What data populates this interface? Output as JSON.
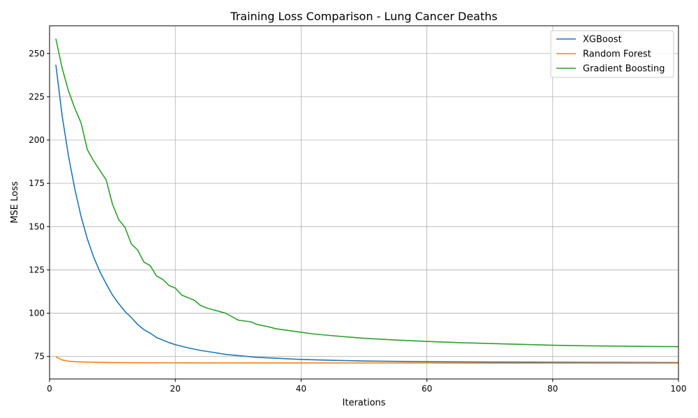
{
  "chart_data": {
    "type": "line",
    "title": "Training Loss Comparison - Lung Cancer Deaths",
    "xlabel": "Iterations",
    "ylabel": "MSE Loss",
    "xlim": [
      0,
      100
    ],
    "ylim": [
      62,
      266
    ],
    "xticks": [
      0,
      20,
      40,
      60,
      80,
      100
    ],
    "yticks": [
      75,
      100,
      125,
      150,
      175,
      200,
      225,
      250
    ],
    "grid": true,
    "legend_position": "upper right",
    "series": [
      {
        "name": "XGBoost",
        "color": "#1f77b4",
        "x": [
          1,
          2,
          3,
          4,
          5,
          6,
          7,
          8,
          9,
          10,
          11,
          12,
          13,
          14,
          15,
          16,
          17,
          18,
          19,
          20,
          22,
          24,
          26,
          28,
          30,
          33,
          36,
          40,
          45,
          50,
          60,
          70,
          80,
          90,
          100
        ],
        "y": [
          243.5,
          214,
          191,
          172,
          156,
          143,
          132.5,
          124,
          117,
          110.5,
          105.5,
          101,
          97.5,
          93.5,
          90.5,
          88.5,
          86,
          84.5,
          83,
          81.8,
          80,
          78.5,
          77.4,
          76.2,
          75.5,
          74.5,
          74,
          73.3,
          72.8,
          72.4,
          72,
          71.8,
          71.7,
          71.6,
          71.5
        ]
      },
      {
        "name": "Random Forest",
        "color": "#ff7f0e",
        "x": [
          1,
          2,
          3,
          4,
          5,
          6,
          8,
          10,
          15,
          20,
          30,
          40,
          50,
          60,
          70,
          80,
          90,
          100
        ],
        "y": [
          74.8,
          73,
          72.3,
          72,
          71.9,
          71.8,
          71.6,
          71.5,
          71.4,
          71.35,
          71.3,
          71.3,
          71.25,
          71.25,
          71.2,
          71.2,
          71.2,
          71.2
        ]
      },
      {
        "name": "Gradient Boosting",
        "color": "#2ca02c",
        "x": [
          1,
          2,
          3,
          4,
          5,
          6,
          7,
          8,
          9,
          10,
          11,
          12,
          13,
          14,
          15,
          16,
          17,
          18,
          19,
          20,
          21,
          22,
          23,
          24,
          25,
          26,
          27,
          28,
          29,
          30,
          32,
          33,
          35,
          36,
          38,
          40,
          42,
          45,
          50,
          55,
          60,
          65,
          70,
          75,
          80,
          85,
          90,
          95,
          100
        ],
        "y": [
          258.5,
          241.5,
          228.5,
          218.5,
          210,
          194.5,
          188,
          182.5,
          177,
          163,
          154,
          149.5,
          140,
          136.5,
          129.5,
          127.5,
          121.5,
          119.5,
          116,
          114.5,
          110.5,
          109,
          107.5,
          104.5,
          103,
          102,
          101,
          100,
          98,
          96,
          95,
          93.5,
          92,
          91,
          90,
          89,
          88,
          87,
          85.5,
          84.5,
          83.7,
          83,
          82.5,
          82,
          81.5,
          81.2,
          81,
          80.8,
          80.7
        ]
      }
    ]
  }
}
